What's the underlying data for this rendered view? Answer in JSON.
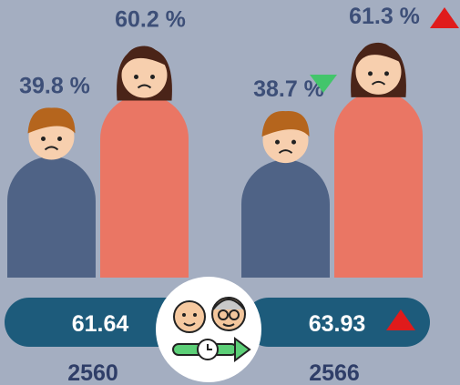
{
  "panels": [
    {
      "year": "2560",
      "values": [
        39.8,
        60.2
      ],
      "value_labels": [
        "39.8 %",
        "60.2 %"
      ],
      "index": 61.64
    },
    {
      "year": "2566",
      "values": [
        38.7,
        61.3
      ],
      "value_labels": [
        "38.7 %",
        "61.3 %"
      ],
      "index": 63.93
    }
  ]
}
